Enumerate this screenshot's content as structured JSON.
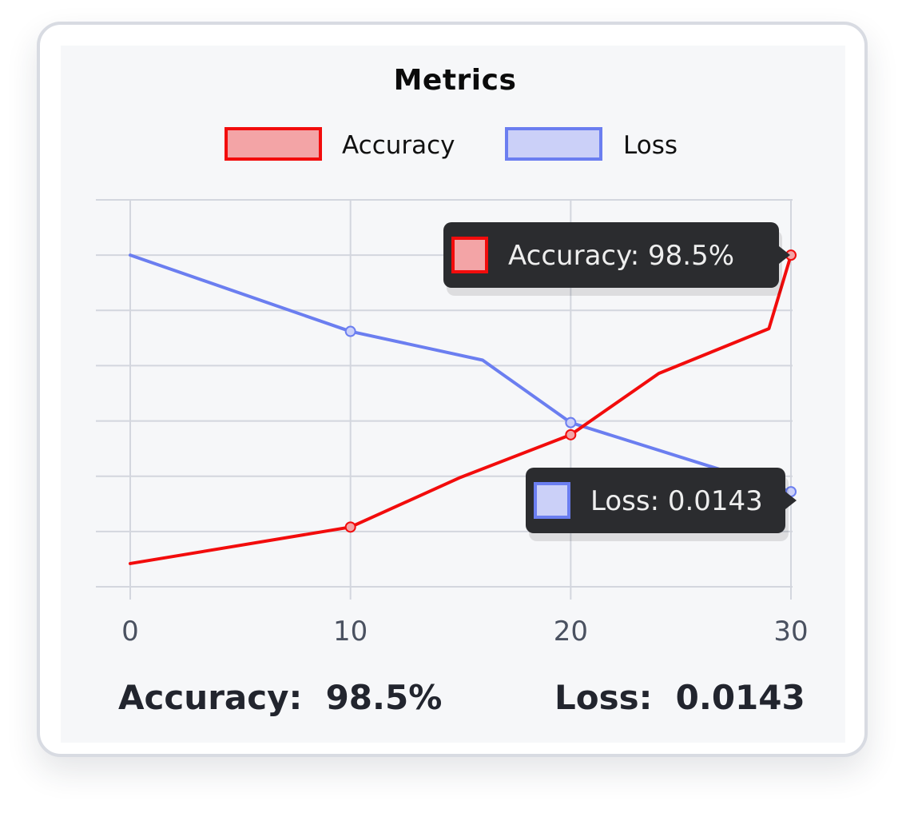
{
  "chart_data": {
    "type": "line",
    "title": "Metrics",
    "x": [
      0,
      5,
      10,
      15,
      16,
      20,
      24,
      29,
      30
    ],
    "xticks": [
      0,
      10,
      20,
      30
    ],
    "xlim": [
      0,
      30
    ],
    "ylim": [
      0,
      7
    ],
    "grid": true,
    "legend_placement": "top-center",
    "series": [
      {
        "name": "Accuracy",
        "color": "#f20c0c",
        "fill": "#f3a4a6",
        "x": [
          0,
          10,
          15,
          20,
          24,
          29,
          30
        ],
        "values": [
          0.42,
          1.08,
          1.98,
          2.75,
          3.86,
          4.67,
          6.0
        ],
        "markers": [
          10,
          20,
          30
        ]
      },
      {
        "name": "Loss",
        "color": "#6b7ef0",
        "fill": "#cbd0f8",
        "x": [
          0,
          10,
          16,
          20,
          30
        ],
        "values": [
          6.0,
          4.62,
          4.1,
          2.97,
          1.72
        ],
        "markers": [
          10,
          20,
          30
        ]
      }
    ],
    "tooltips": [
      {
        "series": "Accuracy",
        "text": "Accuracy: 98.5%"
      },
      {
        "series": "Loss",
        "text": "Loss: 0.0143"
      }
    ]
  },
  "summary": {
    "accuracy": "Accuracy:  98.5%",
    "loss": "Loss:  0.0143"
  }
}
